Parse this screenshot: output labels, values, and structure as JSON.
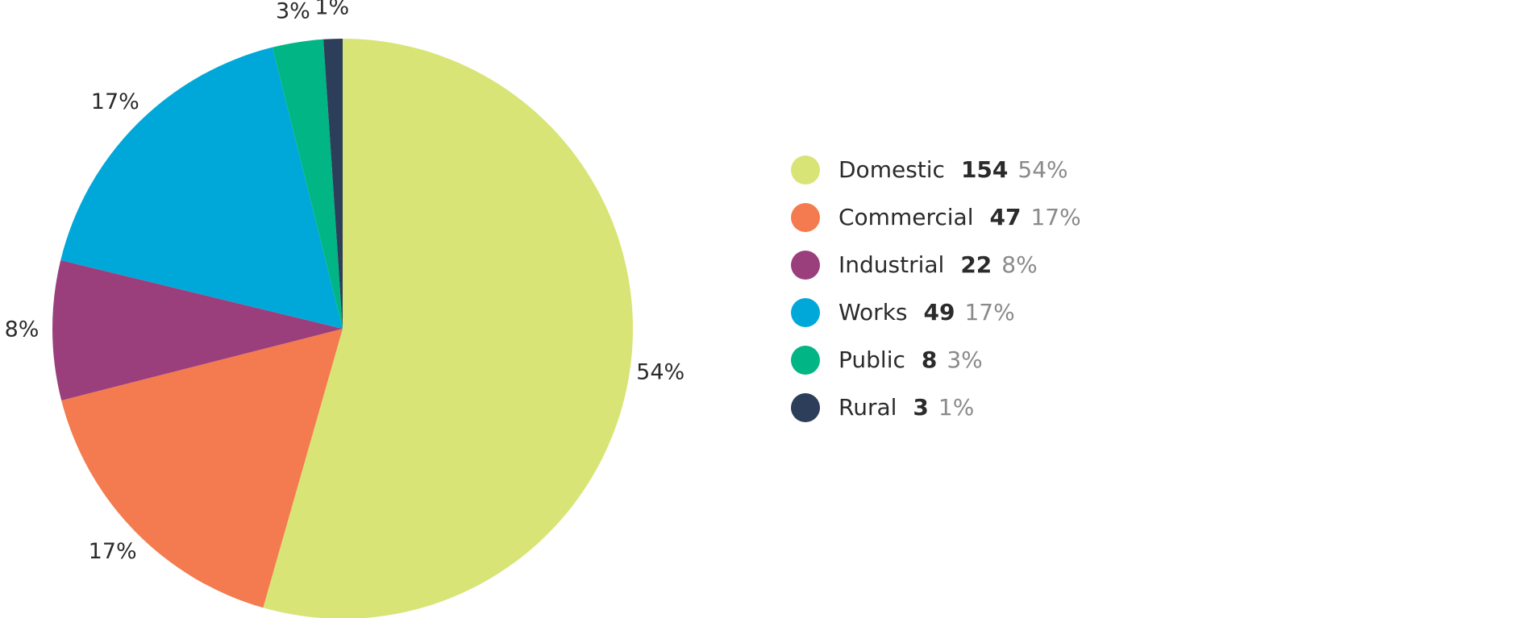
{
  "chart_data": {
    "type": "pie",
    "categories": [
      "Domestic",
      "Commercial",
      "Industrial",
      "Works",
      "Public",
      "Rural"
    ],
    "values": [
      154,
      47,
      22,
      49,
      8,
      3
    ],
    "shares": [
      {
        "value": 54,
        "label": "54%"
      },
      {
        "value": 17,
        "label": "17%"
      },
      {
        "value": 8,
        "label": "8%"
      },
      {
        "value": 17,
        "label": "17%"
      },
      {
        "value": 3,
        "label": "3%"
      },
      {
        "value": 1,
        "label": "1%"
      }
    ],
    "colors": [
      "#d9e476",
      "#f47b4f",
      "#9b3f7c",
      "#00a8d9",
      "#02b585",
      "#2c3e5a"
    ],
    "legend": "right"
  }
}
